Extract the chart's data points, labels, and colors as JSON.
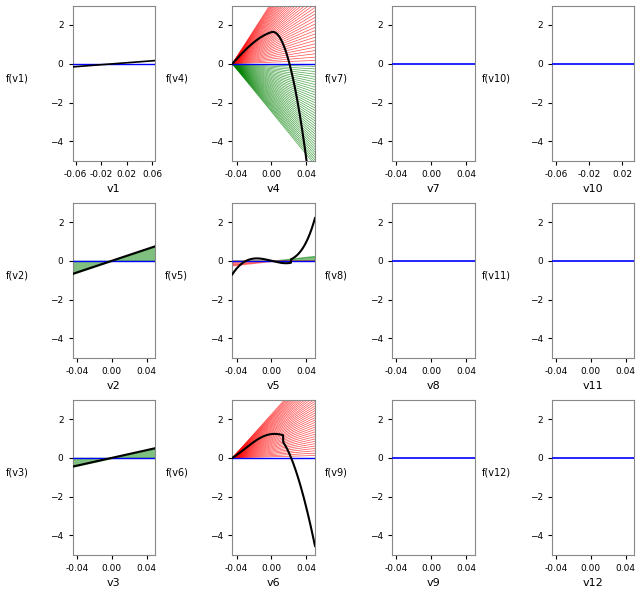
{
  "panels": [
    {
      "name": "v1",
      "ylabel": "f(v1)",
      "xlim": [
        -0.065,
        0.065
      ],
      "ylim": [
        -5,
        3
      ],
      "yticks": [
        2,
        0,
        -2,
        -4
      ],
      "xticks": [
        -0.06,
        -0.02,
        0.02,
        0.06
      ],
      "type": "linear_black_blue",
      "xscale": 0.06
    },
    {
      "name": "v4",
      "ylabel": "f(v4)",
      "xlim": [
        -0.045,
        0.05
      ],
      "ylim": [
        -5,
        3
      ],
      "yticks": [
        2,
        0,
        -2,
        -4
      ],
      "xticks": [
        -0.04,
        0.0,
        0.04
      ],
      "type": "fan_red_green_black_v4",
      "xscale": 0.045
    },
    {
      "name": "v7",
      "ylabel": "f(v7)",
      "xlim": [
        -0.045,
        0.05
      ],
      "ylim": [
        -5,
        3
      ],
      "yticks": [
        2,
        0,
        -2,
        -4
      ],
      "xticks": [
        -0.04,
        0.0,
        0.04
      ],
      "type": "blue_flat"
    },
    {
      "name": "v10",
      "ylabel": "f(v10)",
      "xlim": [
        -0.065,
        0.035
      ],
      "ylim": [
        -5,
        3
      ],
      "yticks": [
        2,
        0,
        -2,
        -4
      ],
      "xticks": [
        -0.06,
        -0.02,
        0.02
      ],
      "type": "blue_flat"
    },
    {
      "name": "v2",
      "ylabel": "f(v2)",
      "xlim": [
        -0.045,
        0.05
      ],
      "ylim": [
        -5,
        3
      ],
      "yticks": [
        2,
        0,
        -2,
        -4
      ],
      "xticks": [
        -0.04,
        0.0,
        0.04
      ],
      "type": "linear_green_black",
      "xscale": 0.045
    },
    {
      "name": "v5",
      "ylabel": "f(v5)",
      "xlim": [
        -0.045,
        0.05
      ],
      "ylim": [
        -5,
        3
      ],
      "yticks": [
        2,
        0,
        -2,
        -4
      ],
      "xticks": [
        -0.04,
        0.0,
        0.04
      ],
      "type": "fan_v5",
      "xscale": 0.045
    },
    {
      "name": "v8",
      "ylabel": "f(v8)",
      "xlim": [
        -0.045,
        0.05
      ],
      "ylim": [
        -5,
        3
      ],
      "yticks": [
        2,
        0,
        -2,
        -4
      ],
      "xticks": [
        -0.04,
        0.0,
        0.04
      ],
      "type": "blue_flat"
    },
    {
      "name": "v11",
      "ylabel": "f(v11)",
      "xlim": [
        -0.045,
        0.05
      ],
      "ylim": [
        -5,
        3
      ],
      "yticks": [
        2,
        0,
        -2,
        -4
      ],
      "xticks": [
        -0.04,
        0.0,
        0.04
      ],
      "type": "blue_flat"
    },
    {
      "name": "v3",
      "ylabel": "f(v3)",
      "xlim": [
        -0.045,
        0.05
      ],
      "ylim": [
        -5,
        3
      ],
      "yticks": [
        2,
        0,
        -2,
        -4
      ],
      "xticks": [
        -0.04,
        0.0,
        0.04
      ],
      "type": "linear_green_black2",
      "xscale": 0.045
    },
    {
      "name": "v6",
      "ylabel": "f(v6)",
      "xlim": [
        -0.045,
        0.05
      ],
      "ylim": [
        -5,
        3
      ],
      "yticks": [
        2,
        0,
        -2,
        -4
      ],
      "xticks": [
        -0.04,
        0.0,
        0.04
      ],
      "type": "fan_v6",
      "xscale": 0.045
    },
    {
      "name": "v9",
      "ylabel": "f(v9)",
      "xlim": [
        -0.045,
        0.05
      ],
      "ylim": [
        -5,
        3
      ],
      "yticks": [
        2,
        0,
        -2,
        -4
      ],
      "xticks": [
        -0.04,
        0.0,
        0.04
      ],
      "type": "blue_flat"
    },
    {
      "name": "v12",
      "ylabel": "f(v12)",
      "xlim": [
        -0.045,
        0.05
      ],
      "ylim": [
        -5,
        3
      ],
      "yticks": [
        2,
        0,
        -2,
        -4
      ],
      "xticks": [
        -0.04,
        0.0,
        0.04
      ],
      "type": "blue_flat"
    }
  ],
  "nrows": 3,
  "ncols": 4,
  "n_fans": 40
}
